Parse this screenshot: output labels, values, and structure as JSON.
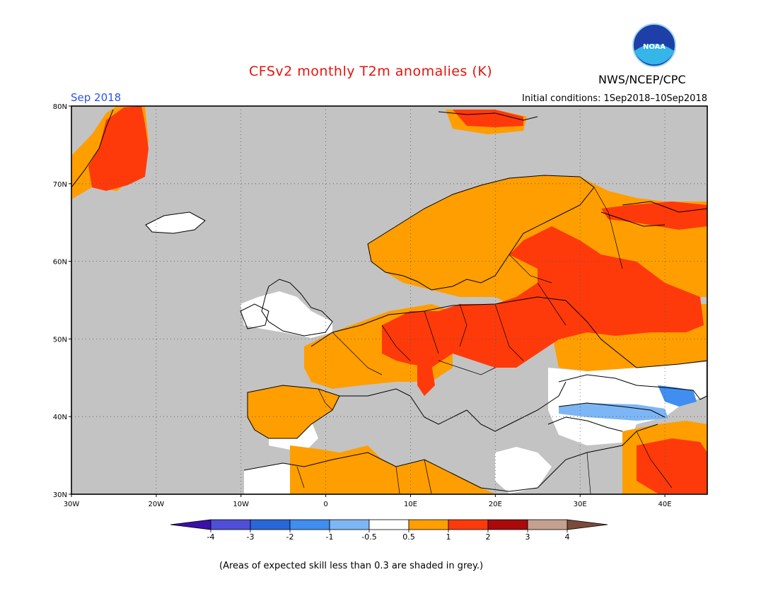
{
  "header": {
    "title": "CFSv2 monthly T2m anomalies (K)",
    "agency": "NWS/NCEP/CPC",
    "logo_text": "NOAA",
    "month": "Sep 2018",
    "initial_conditions": "Initial conditions: 1Sep2018–10Sep2018"
  },
  "map": {
    "lon_range": [
      -30,
      45
    ],
    "lat_range": [
      30,
      80
    ],
    "lat_ticks": [
      {
        "value": 80,
        "label": "80N"
      },
      {
        "value": 70,
        "label": "70N"
      },
      {
        "value": 60,
        "label": "60N"
      },
      {
        "value": 50,
        "label": "50N"
      },
      {
        "value": 40,
        "label": "40N"
      },
      {
        "value": 30,
        "label": "30N"
      }
    ],
    "lon_ticks": [
      {
        "value": -30,
        "label": "30W"
      },
      {
        "value": -20,
        "label": "20W"
      },
      {
        "value": -10,
        "label": "10W"
      },
      {
        "value": 0,
        "label": "0"
      },
      {
        "value": 10,
        "label": "10E"
      },
      {
        "value": 20,
        "label": "20E"
      },
      {
        "value": 30,
        "label": "30E"
      },
      {
        "value": 40,
        "label": "40E"
      }
    ],
    "colors": {
      "low_skill_grey": "#c3c3c3",
      "neutral": "#ffffff",
      "anom_0_5_to_1": "#ff9e00",
      "anom_1_to_2": "#ff3a0a",
      "anom_neg_1_to_neg_0_5": "#7db6f5",
      "anom_neg_2_to_neg_1": "#3f8ef0"
    }
  },
  "colorbar": {
    "bins": [
      {
        "color": "#3b10a8"
      },
      {
        "color": "#4e4ed8"
      },
      {
        "color": "#2767d8"
      },
      {
        "color": "#3f8ef0"
      },
      {
        "color": "#7db6f5"
      },
      {
        "color": "#ffffff"
      },
      {
        "color": "#ff9e00"
      },
      {
        "color": "#ff3a0a"
      },
      {
        "color": "#aa0a0a"
      },
      {
        "color": "#c4a090"
      },
      {
        "color": "#7a4a3a"
      }
    ],
    "labels": [
      "-4",
      "-3",
      "-2",
      "-1",
      "-0.5",
      "0.5",
      "1",
      "2",
      "3",
      "4"
    ]
  },
  "footnote": "(Areas of expected skill less than 0.3 are shaded in grey.)"
}
